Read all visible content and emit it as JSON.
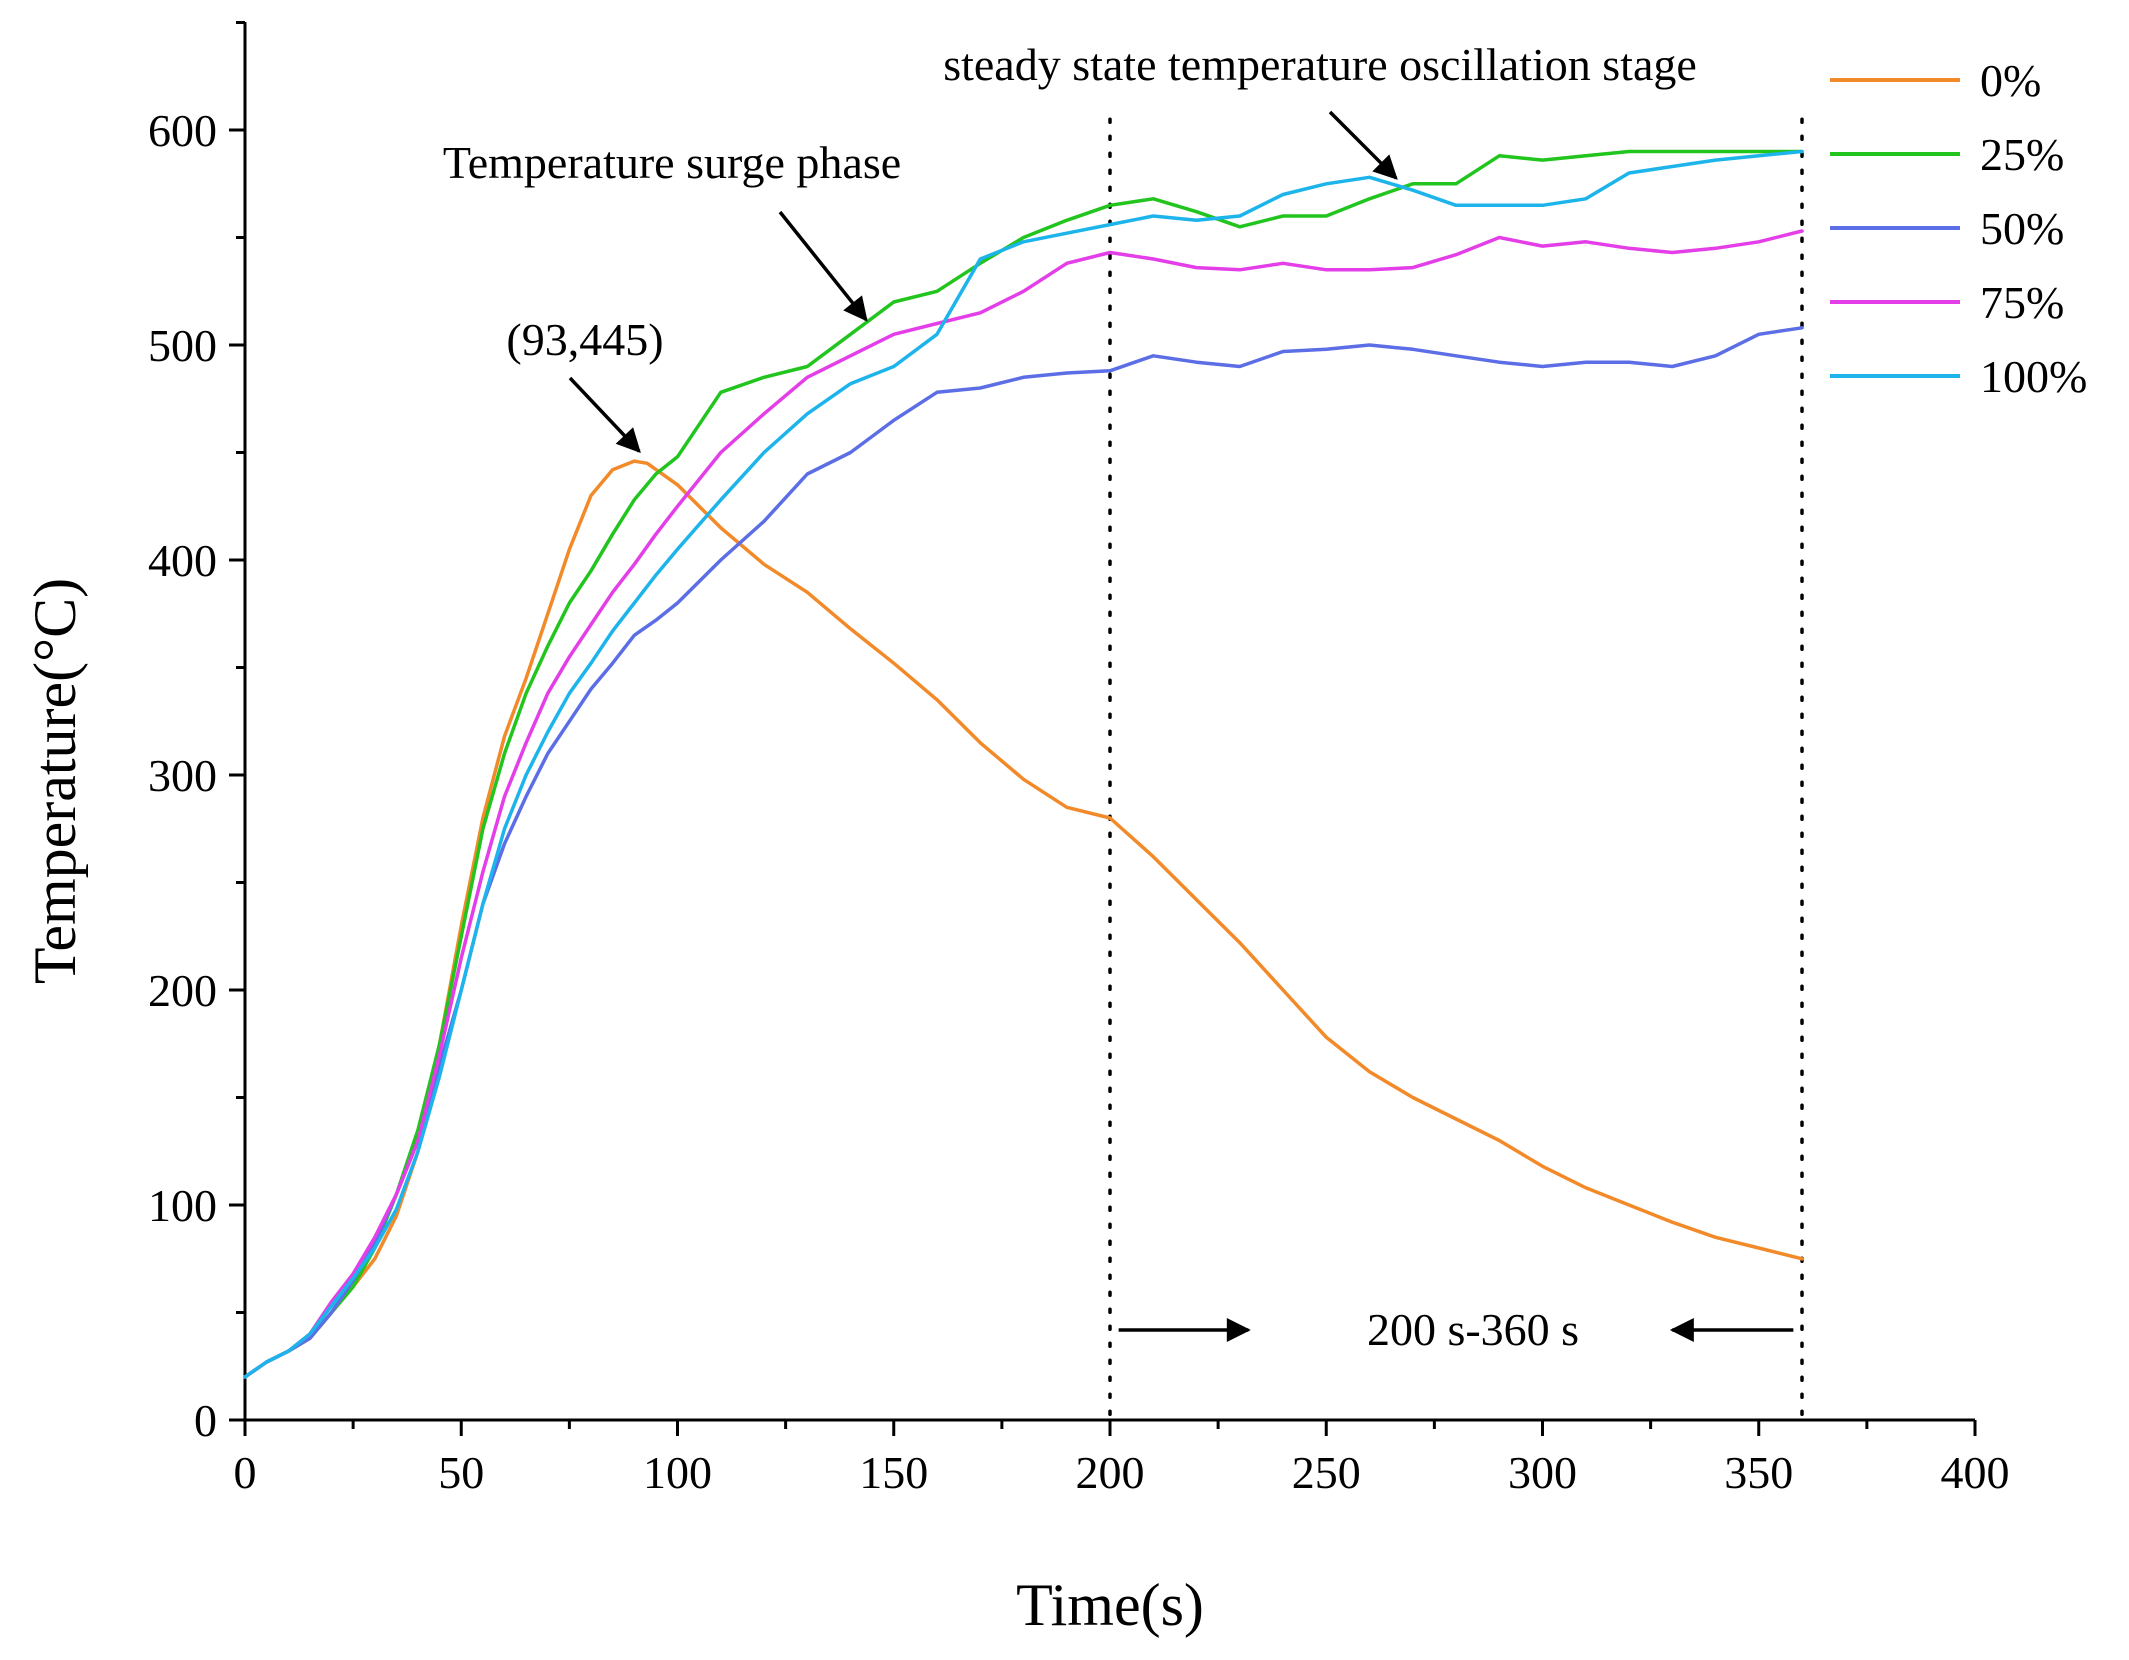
{
  "chart_data": {
    "type": "line",
    "title": "",
    "xlabel": "Time(s)",
    "ylabel": "Temperature(°C)",
    "xlim": [
      0,
      400
    ],
    "ylim": [
      0,
      650
    ],
    "xticks": [
      0,
      50,
      100,
      150,
      200,
      250,
      300,
      350,
      400
    ],
    "xtick_labels": [
      "0",
      "50",
      "100",
      "150",
      "200",
      "250",
      "300",
      "350",
      "400"
    ],
    "yticks": [
      0,
      100,
      200,
      300,
      400,
      500,
      600
    ],
    "ytick_labels": [
      "0",
      "100",
      "200",
      "300",
      "400",
      "500",
      "600"
    ],
    "grid": false,
    "legend_position": "top-right",
    "series": [
      {
        "name": "0%",
        "color": "#f28a2a",
        "x": [
          0,
          5,
          10,
          15,
          20,
          25,
          30,
          35,
          40,
          45,
          50,
          55,
          60,
          65,
          70,
          75,
          80,
          85,
          90,
          93,
          100,
          110,
          120,
          130,
          140,
          150,
          160,
          170,
          180,
          190,
          200,
          210,
          220,
          230,
          240,
          250,
          260,
          270,
          280,
          290,
          300,
          310,
          320,
          330,
          340,
          350,
          360
        ],
        "y": [
          20,
          27,
          32,
          38,
          50,
          62,
          75,
          95,
          125,
          175,
          230,
          280,
          318,
          345,
          375,
          405,
          430,
          442,
          446,
          445,
          435,
          415,
          398,
          385,
          368,
          352,
          335,
          315,
          298,
          285,
          280,
          262,
          242,
          222,
          200,
          178,
          162,
          150,
          140,
          130,
          118,
          108,
          100,
          92,
          85,
          80,
          75
        ]
      },
      {
        "name": "25%",
        "color": "#22c41e",
        "x": [
          0,
          5,
          10,
          15,
          20,
          25,
          30,
          35,
          40,
          45,
          50,
          55,
          60,
          65,
          70,
          75,
          80,
          85,
          90,
          95,
          100,
          110,
          120,
          130,
          140,
          150,
          160,
          170,
          180,
          190,
          200,
          210,
          220,
          230,
          240,
          250,
          260,
          270,
          280,
          290,
          300,
          310,
          320,
          330,
          340,
          350,
          360
        ],
        "y": [
          20,
          27,
          32,
          38,
          50,
          62,
          80,
          105,
          135,
          175,
          225,
          275,
          310,
          338,
          360,
          380,
          395,
          412,
          428,
          440,
          448,
          478,
          485,
          490,
          505,
          520,
          525,
          538,
          550,
          558,
          565,
          568,
          562,
          555,
          560,
          560,
          568,
          575,
          575,
          588,
          586,
          588,
          590,
          590,
          590,
          590,
          590
        ]
      },
      {
        "name": "50%",
        "color": "#5c6ee6",
        "x": [
          0,
          5,
          10,
          15,
          20,
          25,
          30,
          35,
          40,
          45,
          50,
          55,
          60,
          65,
          70,
          75,
          80,
          85,
          90,
          95,
          100,
          110,
          120,
          130,
          140,
          150,
          160,
          170,
          180,
          190,
          200,
          210,
          220,
          230,
          240,
          250,
          260,
          270,
          280,
          290,
          300,
          310,
          320,
          330,
          340,
          350,
          360
        ],
        "y": [
          20,
          27,
          32,
          38,
          50,
          65,
          82,
          105,
          130,
          165,
          200,
          240,
          268,
          290,
          310,
          325,
          340,
          352,
          365,
          372,
          380,
          400,
          418,
          440,
          450,
          465,
          478,
          480,
          485,
          487,
          488,
          495,
          492,
          490,
          497,
          498,
          500,
          498,
          495,
          492,
          490,
          492,
          492,
          490,
          495,
          505,
          508
        ]
      },
      {
        "name": "75%",
        "color": "#e33ee8",
        "x": [
          0,
          5,
          10,
          15,
          20,
          25,
          30,
          35,
          40,
          45,
          50,
          55,
          60,
          65,
          70,
          75,
          80,
          85,
          90,
          95,
          100,
          110,
          120,
          130,
          140,
          150,
          160,
          170,
          180,
          190,
          200,
          210,
          220,
          230,
          240,
          250,
          260,
          270,
          280,
          290,
          300,
          310,
          320,
          330,
          340,
          350,
          360
        ],
        "y": [
          20,
          27,
          32,
          40,
          55,
          68,
          85,
          105,
          130,
          170,
          215,
          255,
          290,
          315,
          338,
          355,
          370,
          385,
          398,
          412,
          425,
          450,
          468,
          485,
          495,
          505,
          510,
          515,
          525,
          538,
          543,
          540,
          536,
          535,
          538,
          535,
          535,
          536,
          542,
          550,
          546,
          548,
          545,
          543,
          545,
          548,
          553
        ]
      },
      {
        "name": "100%",
        "color": "#1cb4ea",
        "x": [
          0,
          5,
          10,
          15,
          20,
          25,
          30,
          35,
          40,
          45,
          50,
          55,
          60,
          65,
          70,
          75,
          80,
          85,
          90,
          95,
          100,
          110,
          120,
          130,
          140,
          150,
          160,
          170,
          180,
          190,
          200,
          210,
          220,
          230,
          240,
          250,
          260,
          270,
          280,
          290,
          300,
          310,
          320,
          330,
          340,
          350,
          360
        ],
        "y": [
          20,
          27,
          32,
          40,
          53,
          66,
          80,
          98,
          125,
          160,
          200,
          240,
          275,
          300,
          320,
          338,
          352,
          367,
          380,
          393,
          405,
          428,
          450,
          468,
          482,
          490,
          505,
          540,
          548,
          552,
          556,
          560,
          558,
          560,
          570,
          575,
          578,
          572,
          565,
          565,
          565,
          568,
          580,
          583,
          586,
          588,
          590
        ]
      }
    ],
    "vlines": [
      200,
      360
    ],
    "annotations": [
      {
        "id": "peak",
        "text": "(93,445)",
        "x": 93,
        "y": 445
      },
      {
        "id": "surge",
        "text": "Temperature surge phase",
        "x": 145,
        "y": 508
      },
      {
        "id": "steady",
        "text": "steady state temperature oscillation stage",
        "x": 268,
        "y": 572
      },
      {
        "id": "range",
        "text": "200 s-360 s",
        "x": 280,
        "y": 42
      }
    ]
  }
}
